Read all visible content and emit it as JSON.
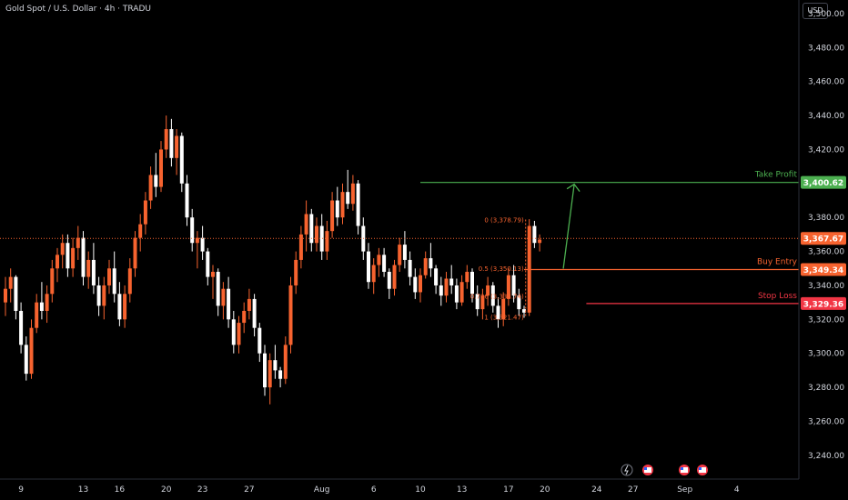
{
  "header": {
    "title": "Gold Spot / U.S. Dollar · 4h · TRADU",
    "currency": "USD"
  },
  "chart_data": {
    "type": "candlestick",
    "title": "Gold Spot / U.S. Dollar · 4h · TRADU",
    "ylim": [
      3226,
      3508
    ],
    "y_ticks": [
      "3,240.00",
      "3,260.00",
      "3,280.00",
      "3,300.00",
      "3,320.00",
      "3,340.00",
      "3,360.00",
      "3,380.00",
      "3,400.00",
      "3,420.00",
      "3,440.00",
      "3,460.00",
      "3,480.00",
      "3,500.00"
    ],
    "y_tick_values": [
      3240,
      3260,
      3280,
      3300,
      3320,
      3340,
      3360,
      3380,
      3400,
      3420,
      3440,
      3460,
      3480,
      3500
    ],
    "x_ticks": [
      {
        "label": "9",
        "index": 3
      },
      {
        "label": "13",
        "index": 15
      },
      {
        "label": "16",
        "index": 22
      },
      {
        "label": "20",
        "index": 31
      },
      {
        "label": "23",
        "index": 38
      },
      {
        "label": "27",
        "index": 47
      },
      {
        "label": "Aug",
        "index": 61
      },
      {
        "label": "6",
        "index": 71
      },
      {
        "label": "10",
        "index": 80
      },
      {
        "label": "13",
        "index": 88
      },
      {
        "label": "17",
        "index": 97
      },
      {
        "label": "20",
        "index": 104
      },
      {
        "label": "24",
        "index": 114
      },
      {
        "label": "27",
        "index": 121
      },
      {
        "label": "Sep",
        "index": 131
      },
      {
        "label": "4",
        "index": 141
      }
    ],
    "candles": [
      [
        3330,
        3345,
        3322,
        3338
      ],
      [
        3338,
        3350,
        3330,
        3345
      ],
      [
        3345,
        3346,
        3320,
        3325
      ],
      [
        3325,
        3330,
        3300,
        3305
      ],
      [
        3305,
        3310,
        3284,
        3288
      ],
      [
        3288,
        3320,
        3285,
        3315
      ],
      [
        3315,
        3335,
        3312,
        3330
      ],
      [
        3330,
        3342,
        3320,
        3325
      ],
      [
        3325,
        3340,
        3318,
        3335
      ],
      [
        3335,
        3355,
        3330,
        3350
      ],
      [
        3350,
        3362,
        3342,
        3358
      ],
      [
        3358,
        3370,
        3350,
        3365
      ],
      [
        3365,
        3370,
        3345,
        3350
      ],
      [
        3350,
        3368,
        3345,
        3362
      ],
      [
        3362,
        3375,
        3355,
        3368
      ],
      [
        3368,
        3372,
        3340,
        3345
      ],
      [
        3345,
        3360,
        3338,
        3355
      ],
      [
        3355,
        3365,
        3335,
        3340
      ],
      [
        3340,
        3345,
        3322,
        3328
      ],
      [
        3328,
        3345,
        3320,
        3340
      ],
      [
        3340,
        3355,
        3335,
        3350
      ],
      [
        3350,
        3360,
        3330,
        3335
      ],
      [
        3335,
        3342,
        3316,
        3320
      ],
      [
        3320,
        3340,
        3315,
        3335
      ],
      [
        3335,
        3356,
        3330,
        3350
      ],
      [
        3350,
        3372,
        3345,
        3368
      ],
      [
        3368,
        3382,
        3360,
        3376
      ],
      [
        3376,
        3395,
        3370,
        3390
      ],
      [
        3390,
        3410,
        3385,
        3405
      ],
      [
        3405,
        3418,
        3392,
        3398
      ],
      [
        3398,
        3425,
        3395,
        3420
      ],
      [
        3420,
        3440,
        3415,
        3432
      ],
      [
        3432,
        3438,
        3410,
        3415
      ],
      [
        3415,
        3432,
        3405,
        3428
      ],
      [
        3428,
        3430,
        3395,
        3400
      ],
      [
        3400,
        3405,
        3375,
        3380
      ],
      [
        3380,
        3385,
        3360,
        3365
      ],
      [
        3365,
        3372,
        3350,
        3368
      ],
      [
        3368,
        3375,
        3355,
        3360
      ],
      [
        3360,
        3362,
        3340,
        3345
      ],
      [
        3345,
        3352,
        3332,
        3348
      ],
      [
        3348,
        3350,
        3322,
        3328
      ],
      [
        3328,
        3342,
        3320,
        3338
      ],
      [
        3338,
        3345,
        3315,
        3320
      ],
      [
        3320,
        3325,
        3300,
        3305
      ],
      [
        3305,
        3322,
        3300,
        3318
      ],
      [
        3318,
        3330,
        3312,
        3325
      ],
      [
        3325,
        3338,
        3320,
        3332
      ],
      [
        3332,
        3335,
        3310,
        3315
      ],
      [
        3315,
        3318,
        3295,
        3300
      ],
      [
        3300,
        3305,
        3275,
        3280
      ],
      [
        3280,
        3300,
        3270,
        3296
      ],
      [
        3296,
        3305,
        3285,
        3290
      ],
      [
        3290,
        3292,
        3280,
        3285
      ],
      [
        3285,
        3310,
        3282,
        3305
      ],
      [
        3305,
        3345,
        3300,
        3340
      ],
      [
        3340,
        3360,
        3335,
        3355
      ],
      [
        3355,
        3375,
        3350,
        3370
      ],
      [
        3370,
        3390,
        3360,
        3382
      ],
      [
        3382,
        3385,
        3360,
        3365
      ],
      [
        3365,
        3380,
        3360,
        3375
      ],
      [
        3375,
        3382,
        3355,
        3360
      ],
      [
        3360,
        3378,
        3355,
        3372
      ],
      [
        3372,
        3395,
        3368,
        3390
      ],
      [
        3390,
        3398,
        3375,
        3380
      ],
      [
        3380,
        3400,
        3376,
        3395
      ],
      [
        3395,
        3408,
        3385,
        3388
      ],
      [
        3388,
        3405,
        3384,
        3400
      ],
      [
        3400,
        3402,
        3370,
        3375
      ],
      [
        3375,
        3380,
        3355,
        3360
      ],
      [
        3360,
        3365,
        3338,
        3342
      ],
      [
        3342,
        3356,
        3335,
        3352
      ],
      [
        3352,
        3362,
        3345,
        3358
      ],
      [
        3358,
        3362,
        3345,
        3348
      ],
      [
        3348,
        3350,
        3332,
        3338
      ],
      [
        3338,
        3355,
        3334,
        3352
      ],
      [
        3352,
        3368,
        3348,
        3364
      ],
      [
        3364,
        3372,
        3350,
        3355
      ],
      [
        3355,
        3360,
        3340,
        3345
      ],
      [
        3345,
        3350,
        3332,
        3336
      ],
      [
        3336,
        3350,
        3330,
        3346
      ],
      [
        3346,
        3360,
        3344,
        3356
      ],
      [
        3356,
        3365,
        3345,
        3350
      ],
      [
        3350,
        3352,
        3335,
        3340
      ],
      [
        3340,
        3345,
        3328,
        3334
      ],
      [
        3334,
        3348,
        3330,
        3344
      ],
      [
        3344,
        3352,
        3335,
        3340
      ],
      [
        3340,
        3344,
        3326,
        3330
      ],
      [
        3330,
        3346,
        3328,
        3342
      ],
      [
        3342,
        3352,
        3338,
        3348
      ],
      [
        3348,
        3350,
        3330,
        3335
      ],
      [
        3335,
        3340,
        3322,
        3326
      ],
      [
        3326,
        3338,
        3320,
        3334
      ],
      [
        3334,
        3345,
        3328,
        3340
      ],
      [
        3340,
        3342,
        3324,
        3328
      ],
      [
        3328,
        3333,
        3315,
        3320
      ],
      [
        3320,
        3336,
        3316,
        3332
      ],
      [
        3332,
        3350,
        3328,
        3346
      ],
      [
        3346,
        3352,
        3330,
        3334
      ],
      [
        3334,
        3338,
        3322,
        3326
      ],
      [
        3326,
        3328,
        3321,
        3324
      ],
      [
        3324,
        3379,
        3322,
        3375
      ],
      [
        3375,
        3378,
        3362,
        3365
      ],
      [
        3365,
        3370,
        3360,
        3367
      ]
    ],
    "current_price": {
      "label": "3,367.67",
      "value": 3367.67
    },
    "levels": [
      {
        "name": "Take Profit",
        "label": "3,400.62",
        "value": 3400.62,
        "color": "#4caf50"
      },
      {
        "name": "Buy Entry",
        "label": "3,349.34",
        "value": 3349.34,
        "color": "#f7632f"
      },
      {
        "name": "Stop Loss",
        "label": "3,329.36",
        "value": 3329.36,
        "color": "#f23645"
      }
    ],
    "fib_labels": [
      {
        "text": "0 (3,378.79)",
        "value": 3378.79
      },
      {
        "text": "0.5 (3,350.13)",
        "value": 3350.13
      },
      {
        "text": "0.786 (3,333.74)",
        "value": 3333.74
      },
      {
        "text": "1 (3,321.47)",
        "value": 3321.47
      }
    ],
    "colors": {
      "up": "#f7632f",
      "down": "#ffffff",
      "axis_text": "#d1d4dc",
      "current_price_bg": "#f7632f",
      "arrow": "#4caf50"
    }
  }
}
